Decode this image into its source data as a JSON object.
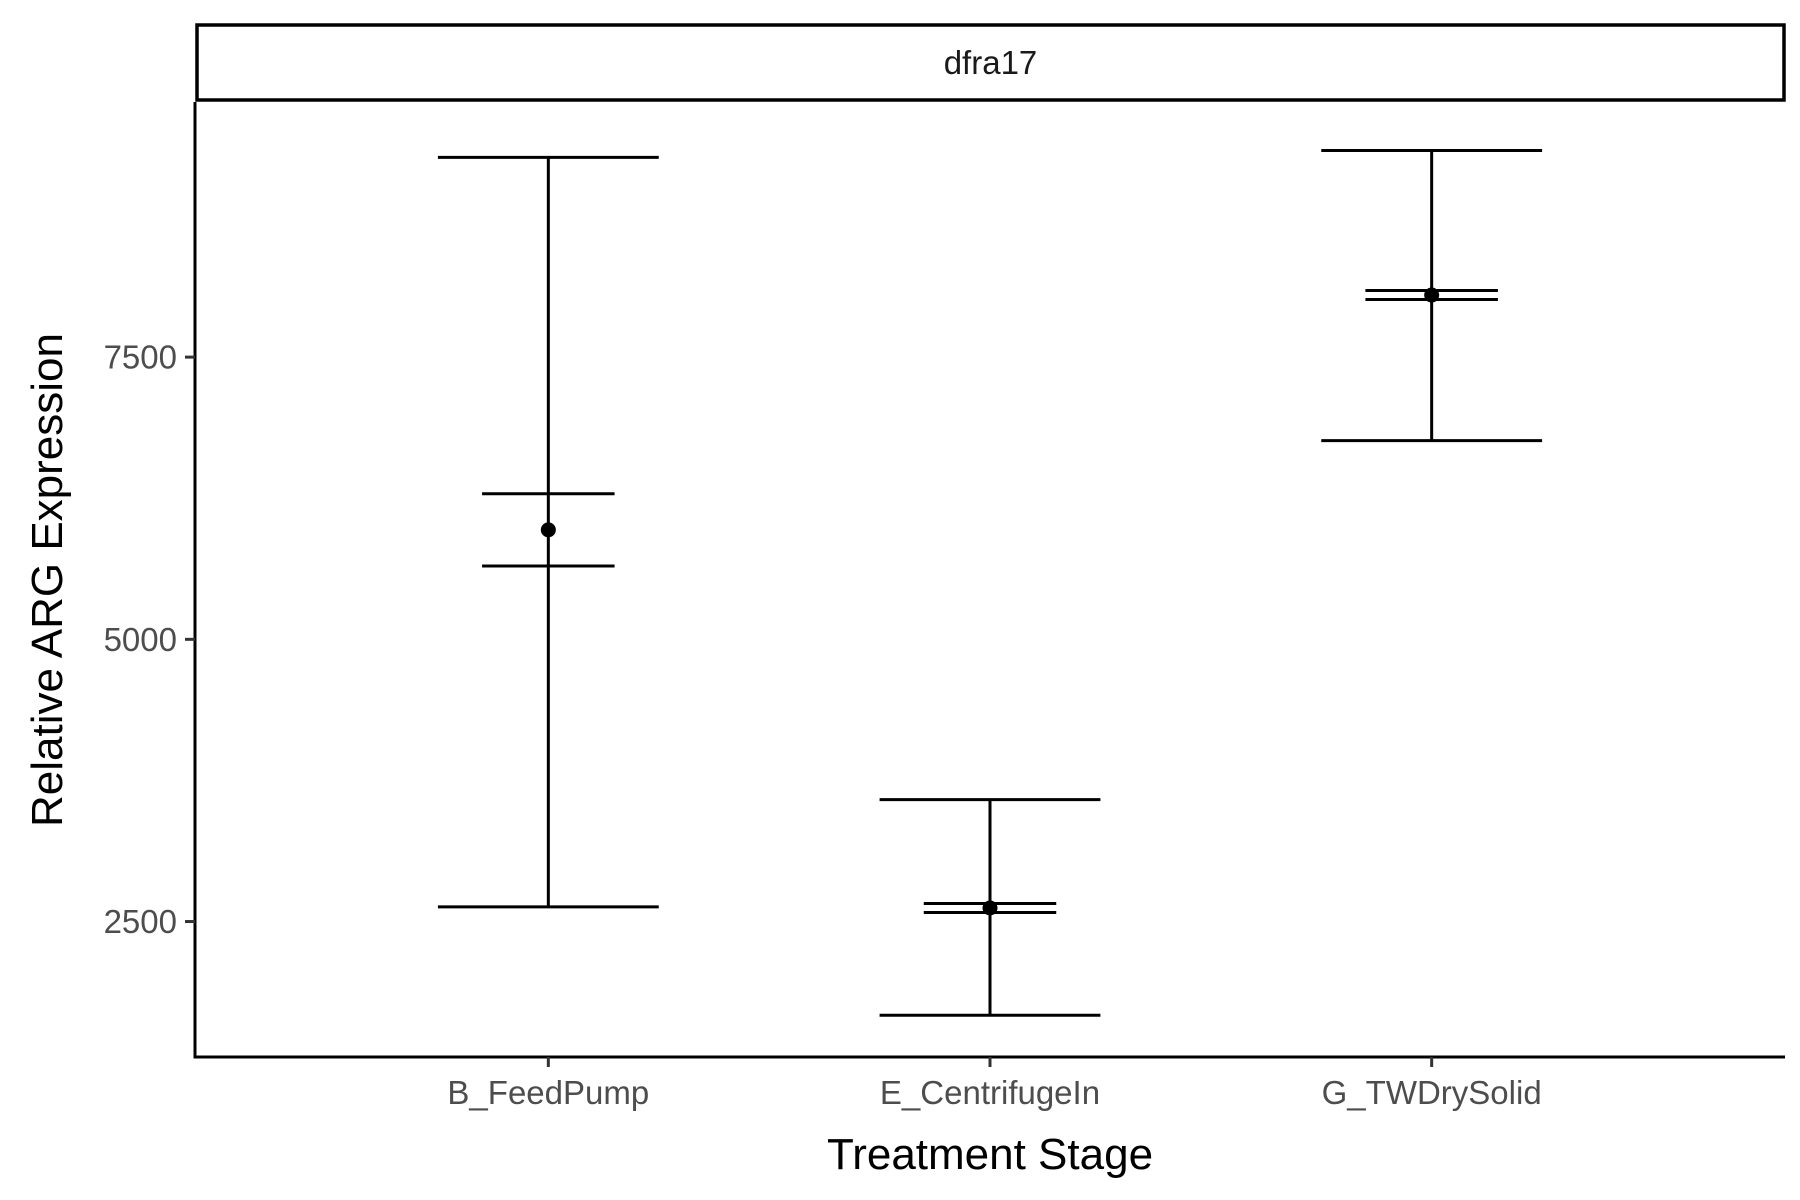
{
  "chart_data": {
    "type": "errorbar",
    "facet_label": "dfra17",
    "xlabel": "Treatment Stage",
    "ylabel": "Relative ARG Expression",
    "categories": [
      "B_FeedPump",
      "E_CentrifugeIn",
      "G_TWDrySolid"
    ],
    "series": [
      {
        "points": [
          {
            "x": "B_FeedPump",
            "mean": 5970,
            "sd_lower": 2630,
            "sd_upper": 9270,
            "se_lower": 5650,
            "se_upper": 6290
          },
          {
            "x": "E_CentrifugeIn",
            "mean": 2620,
            "sd_lower": 1670,
            "sd_upper": 3580,
            "se_lower": 2580,
            "se_upper": 2660
          },
          {
            "x": "G_TWDrySolid",
            "mean": 8050,
            "sd_lower": 6760,
            "sd_upper": 9330,
            "se_lower": 8010,
            "se_upper": 8090
          }
        ]
      }
    ],
    "ylim": [
      1300,
      9760
    ],
    "yticks": [
      2500,
      5000,
      7500
    ],
    "ytick_labels": [
      "2500",
      "5000",
      "7500"
    ],
    "grid": false,
    "colors": {
      "marks": "#000000",
      "tick_text": "#4d4d4d",
      "axis_line": "#000000"
    }
  }
}
